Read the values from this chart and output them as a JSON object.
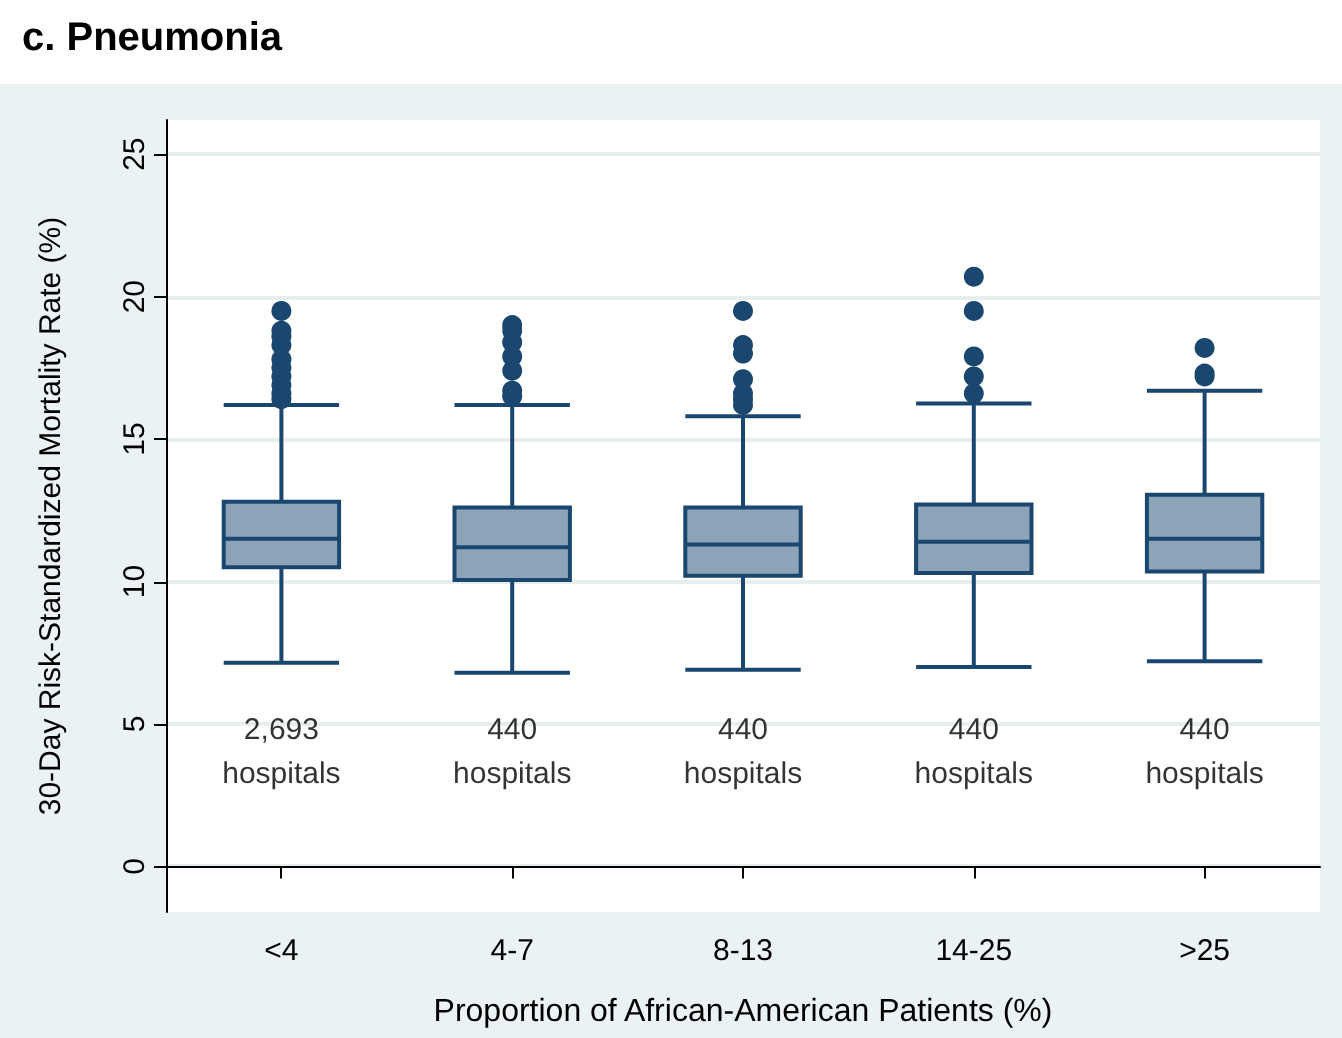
{
  "chart_data": {
    "type": "box",
    "title": "c. Pneumonia",
    "xlabel": "Proportion of African-American Patients (%)",
    "ylabel": "30-Day Risk-Standardized Mortality Rate (%)",
    "categories": [
      "<4",
      "4-7",
      "8-13",
      "14-25",
      ">25"
    ],
    "color": "#1a476f",
    "boxes": [
      {
        "low": 7.15,
        "q1": 10.5,
        "median": 11.5,
        "q3": 12.8,
        "high": 16.2,
        "outliers": [
          19.5,
          18.8,
          18.6,
          18.3,
          17.8,
          17.5,
          17.2,
          16.9,
          16.6,
          16.4
        ]
      },
      {
        "low": 6.8,
        "q1": 10.05,
        "median": 11.2,
        "q3": 12.6,
        "high": 16.2,
        "outliers": [
          19.0,
          18.8,
          18.4,
          17.9,
          17.4,
          16.7,
          16.5
        ]
      },
      {
        "low": 6.9,
        "q1": 10.2,
        "median": 11.3,
        "q3": 12.6,
        "high": 15.8,
        "outliers": [
          19.5,
          18.3,
          18.0,
          17.1,
          16.6,
          16.4,
          16.2
        ]
      },
      {
        "low": 7.0,
        "q1": 10.3,
        "median": 11.4,
        "q3": 12.7,
        "high": 16.25,
        "outliers": [
          20.7,
          19.5,
          17.9,
          17.2,
          16.6
        ]
      },
      {
        "low": 7.2,
        "q1": 10.35,
        "median": 11.5,
        "q3": 13.05,
        "high": 16.7,
        "outliers": [
          18.2,
          17.3,
          17.2
        ]
      }
    ],
    "ylim": [
      -1.6,
      26.2
    ],
    "yticks": [
      0,
      5,
      10,
      15,
      20,
      25
    ],
    "grid": "y",
    "annotations": [
      "2,693\nhospitals",
      "440\nhospitals",
      "440\nhospitals",
      "440\nhospitals",
      "440\nhospitals"
    ]
  }
}
